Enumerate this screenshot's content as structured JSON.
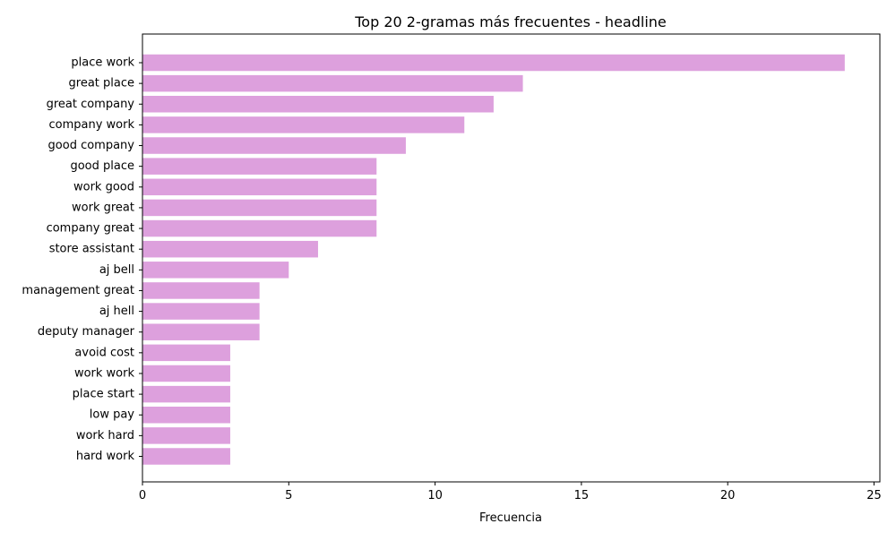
{
  "chart_data": {
    "type": "bar",
    "orientation": "horizontal",
    "title": "Top 20 2-gramas más frecuentes - headline",
    "xlabel": "Frecuencia",
    "ylabel": "",
    "xlim": [
      0,
      25.2
    ],
    "xticks": [
      0,
      5,
      10,
      15,
      20,
      25
    ],
    "grid": false,
    "bar_color": "#dda0dd",
    "categories": [
      "place work",
      "great place",
      "great company",
      "company work",
      "good company",
      "good place",
      "work good",
      "work great",
      "company great",
      "store assistant",
      "aj bell",
      "management great",
      "aj hell",
      "deputy manager",
      "avoid cost",
      "work work",
      "place start",
      "low pay",
      "work hard",
      "hard work"
    ],
    "values": [
      24,
      13,
      12,
      11,
      9,
      8,
      8,
      8,
      8,
      6,
      5,
      4,
      4,
      4,
      3,
      3,
      3,
      3,
      3,
      3
    ]
  }
}
